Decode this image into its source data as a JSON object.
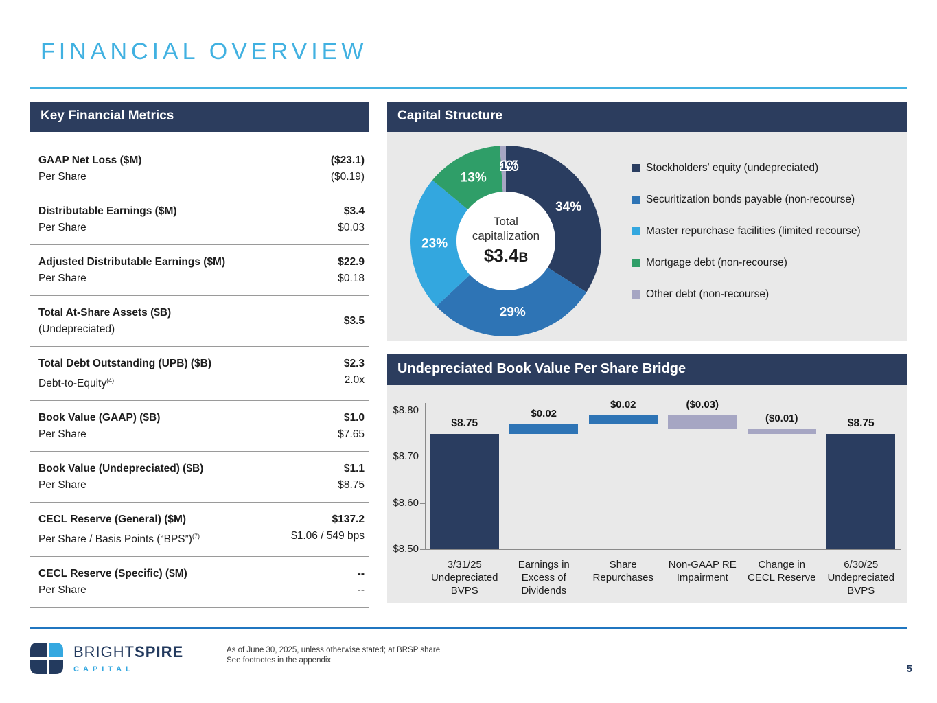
{
  "page": {
    "title": "FINANCIAL OVERVIEW",
    "page_number": "5"
  },
  "colors": {
    "accent_blue": "#41b1e1",
    "header_navy": "#2c3d5e",
    "panel_gray": "#e9e9e9",
    "rule_bottom_blue": "#2076c0",
    "brand_navy": "#233a5e",
    "brand_teal": "#35a8e0"
  },
  "metrics": {
    "header": "Key Financial Metrics",
    "rows": [
      {
        "label": "GAAP Net Loss ($M)",
        "sublabel": "Per Share",
        "sublabel_sup": "",
        "value": "($23.1)",
        "subvalue": "($0.19)",
        "single": false
      },
      {
        "label": "Distributable Earnings ($M)",
        "sublabel": "Per Share",
        "sublabel_sup": "",
        "value": "$3.4",
        "subvalue": "$0.03",
        "single": false
      },
      {
        "label": "Adjusted Distributable Earnings ($M)",
        "sublabel": "Per Share",
        "sublabel_sup": "",
        "value": "$22.9",
        "subvalue": "$0.18",
        "single": false
      },
      {
        "label": "Total At-Share Assets ($B)",
        "sublabel": "(Undepreciated)",
        "sublabel_sup": "",
        "value": "$3.5",
        "subvalue": "",
        "single": true
      },
      {
        "label": "Total Debt Outstanding (UPB) ($B)",
        "sublabel": "Debt-to-Equity",
        "sublabel_sup": "(4)",
        "value": "$2.3",
        "subvalue": "2.0x",
        "single": false
      },
      {
        "label": "Book Value (GAAP) ($B)",
        "sublabel": "Per Share",
        "sublabel_sup": "",
        "value": "$1.0",
        "subvalue": "$7.65",
        "single": false
      },
      {
        "label": "Book Value (Undepreciated) ($B)",
        "sublabel": "Per Share",
        "sublabel_sup": "",
        "value": "$1.1",
        "subvalue": "$8.75",
        "single": false
      },
      {
        "label": "CECL Reserve (General) ($M)",
        "sublabel": "Per Share / Basis Points (“BPS”)",
        "sublabel_sup": "(7)",
        "value": "$137.2",
        "subvalue": "$1.06 / 549 bps",
        "single": false
      },
      {
        "label": "CECL Reserve (Specific) ($M)",
        "sublabel": "Per Share",
        "sublabel_sup": "",
        "value": "--",
        "subvalue": "--",
        "single": false
      }
    ]
  },
  "capital_structure": {
    "header": "Capital Structure",
    "center": {
      "line1": "Total",
      "line2": "capitalization",
      "value": "$3.4",
      "suffix": "B"
    }
  },
  "bridge": {
    "header": "Undepreciated Book Value Per Share Bridge"
  },
  "footer": {
    "brand_first": "BRIGHT",
    "brand_second": "SPIRE",
    "brand_sub": "CAPITAL",
    "note_line1": "As of June 30, 2025, unless otherwise stated; at BRSP share",
    "note_line2": "See footnotes in the appendix"
  },
  "chart_data": [
    {
      "type": "pie",
      "subtype": "donut",
      "title": "Capital Structure",
      "center_label": "Total capitalization $3.4B",
      "legend_position": "right",
      "slices": [
        {
          "label": "Stockholders' equity (undepreciated)",
          "value": 34,
          "display": "34%",
          "color": "#2a3d60"
        },
        {
          "label": "Securitization bonds payable (non-recourse)",
          "value": 29,
          "display": "29%",
          "color": "#2e74b5"
        },
        {
          "label": "Master repurchase facilities (limited recourse)",
          "value": 23,
          "display": "23%",
          "color": "#33a7df"
        },
        {
          "label": "Mortgage debt (non-recourse)",
          "value": 13,
          "display": "13%",
          "color": "#2f9e68"
        },
        {
          "label": "Other debt (non-recourse)",
          "value": 1,
          "display": "1%",
          "color": "#a6a6c3"
        }
      ]
    },
    {
      "type": "bar",
      "subtype": "waterfall",
      "title": "Undepreciated Book Value Per Share Bridge",
      "ylim": [
        8.5,
        8.8
      ],
      "ytick_values": [
        8.8,
        8.7,
        8.6,
        8.5
      ],
      "ytick_labels": [
        "$8.80",
        "$8.70",
        "$8.60",
        "$8.50"
      ],
      "grid": false,
      "colors": {
        "total": "#2a3d60",
        "increase": "#2e74b5",
        "decrease": "#a6a6c3"
      },
      "bars": [
        {
          "category": "3/31/25 Undepreciated BVPS",
          "label_lines": [
            "3/31/25",
            "Undepreciated",
            "BVPS"
          ],
          "kind": "total",
          "value": 8.75,
          "display": "$8.75"
        },
        {
          "category": "Earnings in Excess of Dividends",
          "label_lines": [
            "Earnings in",
            "Excess of",
            "Dividends"
          ],
          "kind": "increase",
          "value": 0.02,
          "display": "$0.02"
        },
        {
          "category": "Share Repurchases",
          "label_lines": [
            "Share",
            "Repurchases"
          ],
          "kind": "increase",
          "value": 0.02,
          "display": "$0.02"
        },
        {
          "category": "Non-GAAP RE Impairment",
          "label_lines": [
            "Non-GAAP RE",
            "Impairment"
          ],
          "kind": "decrease",
          "value": -0.03,
          "display": "($0.03)"
        },
        {
          "category": "Change in CECL Reserve",
          "label_lines": [
            "Change in",
            "CECL Reserve"
          ],
          "kind": "decrease",
          "value": -0.01,
          "display": "($0.01)"
        },
        {
          "category": "6/30/25 Undepreciated BVPS",
          "label_lines": [
            "6/30/25",
            "Undepreciated",
            "BVPS"
          ],
          "kind": "total",
          "value": 8.75,
          "display": "$8.75"
        }
      ]
    }
  ]
}
